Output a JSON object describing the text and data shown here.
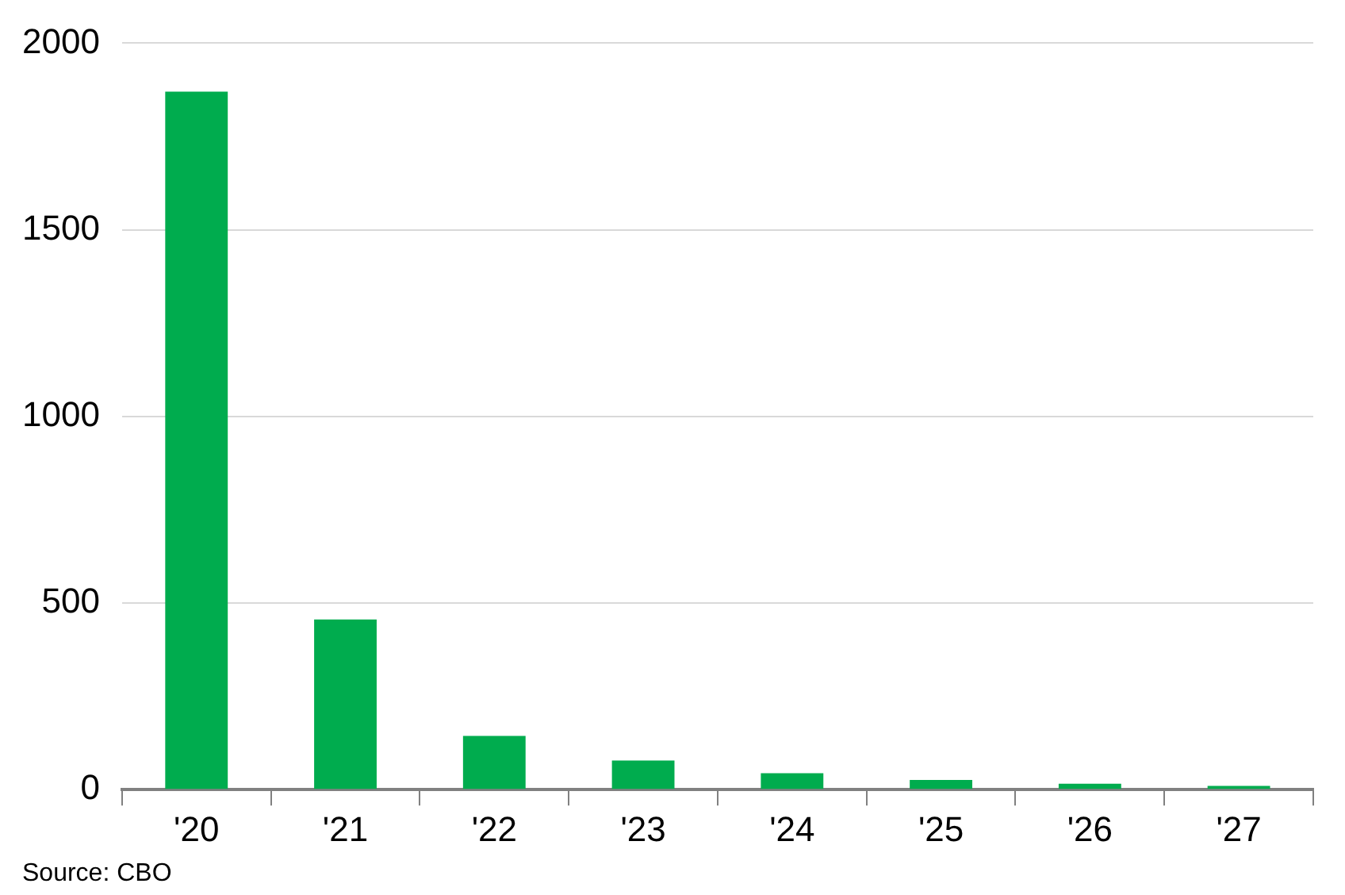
{
  "chart_data": {
    "type": "bar",
    "categories": [
      "'20",
      "'21",
      "'22",
      "'23",
      "'24",
      "'25",
      "'26",
      "'27"
    ],
    "values": [
      1870,
      456,
      144,
      78,
      44,
      26,
      16,
      10
    ],
    "color": "#00ac4e",
    "ylim": [
      0,
      2000
    ],
    "yticks": [
      0,
      500,
      1000,
      1500,
      2000
    ],
    "grid": "y",
    "annotations": [
      "Source: CBO"
    ]
  }
}
